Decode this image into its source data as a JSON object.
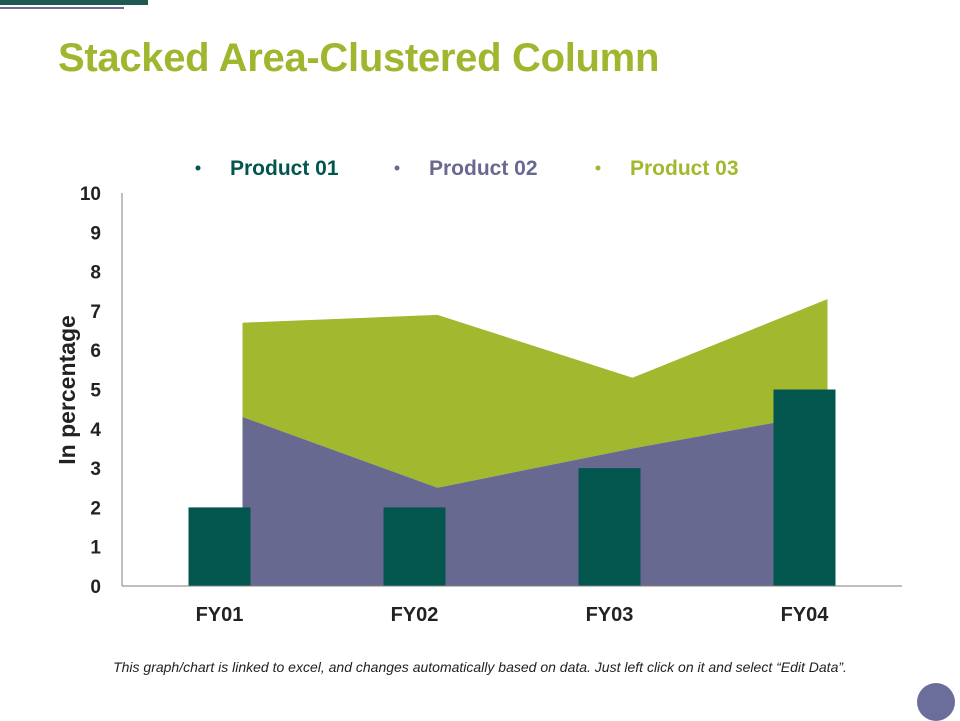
{
  "slide": {
    "title": "Stacked Area-Clustered Column",
    "footnote": "This graph/chart is linked to excel, and changes automatically based on data. Just left click on it and select “Edit Data”."
  },
  "colors": {
    "title": "#9fb62f",
    "product_01": "#02564e",
    "product_02": "#676990",
    "product_03": "#a2b82f",
    "nav_dot": "#6b6e9b"
  },
  "chart_data": {
    "type": "bar",
    "title": "",
    "xlabel": "",
    "ylabel": "In percentage",
    "categories": [
      "FY01",
      "FY02",
      "FY03",
      "FY04"
    ],
    "ylim": [
      0,
      10
    ],
    "yticks": [
      "0",
      "1",
      "2",
      "3",
      "4",
      "5",
      "6",
      "7",
      "8",
      "9",
      "10"
    ],
    "grid": false,
    "legend_position": "top",
    "series": [
      {
        "name": "Product 01",
        "kind": "column",
        "values": [
          2,
          2,
          3,
          5
        ]
      },
      {
        "name": "Product 02",
        "kind": "stacked-area",
        "values": [
          4.3,
          2.5,
          3.5,
          4.4
        ]
      },
      {
        "name": "Product 03",
        "kind": "stacked-area",
        "values": [
          2.4,
          4.4,
          1.8,
          2.9
        ]
      }
    ]
  }
}
